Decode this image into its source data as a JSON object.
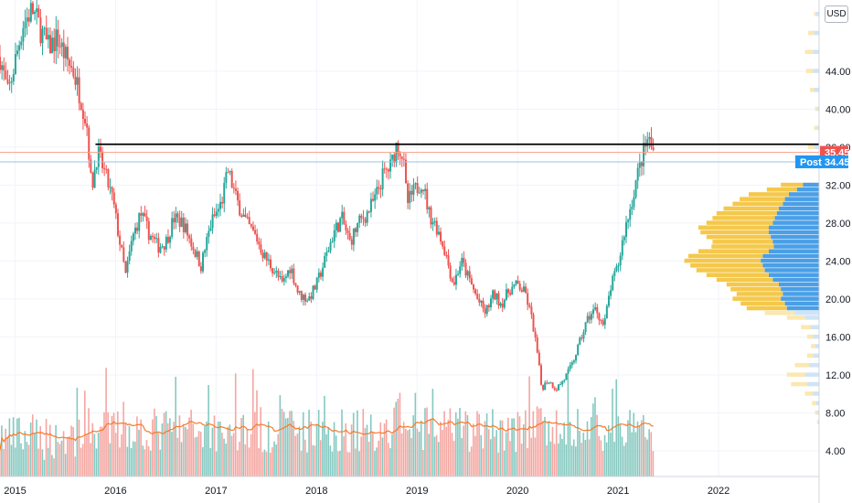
{
  "currency_label": "USD",
  "chart_data": {
    "type": "candlestick",
    "x_axis": {
      "range": [
        2014.85,
        2023.0
      ],
      "tick_labels": [
        "2015",
        "2016",
        "2017",
        "2018",
        "2019",
        "2020",
        "2021",
        "2022"
      ]
    },
    "y_axis": {
      "range": [
        1.3,
        51.5
      ],
      "tick_labels": [
        "4.00",
        "8.00",
        "12.00",
        "16.00",
        "20.00",
        "24.00",
        "28.00",
        "32.00",
        "36.00",
        "40.00",
        "44.00"
      ]
    },
    "price_points": [
      [
        2014.85,
        45.5
      ],
      [
        2014.93,
        41.5
      ],
      [
        2015.0,
        45.0
      ],
      [
        2015.08,
        49.0
      ],
      [
        2015.17,
        50.5
      ],
      [
        2015.25,
        48.5
      ],
      [
        2015.33,
        46.5
      ],
      [
        2015.42,
        47.5
      ],
      [
        2015.5,
        45.5
      ],
      [
        2015.58,
        44.0
      ],
      [
        2015.66,
        41.0
      ],
      [
        2015.72,
        38.0
      ],
      [
        2015.76,
        31.5
      ],
      [
        2015.82,
        35.5
      ],
      [
        2015.9,
        33.0
      ],
      [
        2015.97,
        30.5
      ],
      [
        2016.05,
        25.5
      ],
      [
        2016.1,
        22.5
      ],
      [
        2016.17,
        26.5
      ],
      [
        2016.25,
        29.0
      ],
      [
        2016.33,
        27.0
      ],
      [
        2016.42,
        25.5
      ],
      [
        2016.5,
        26.0
      ],
      [
        2016.58,
        28.5
      ],
      [
        2016.67,
        28.0
      ],
      [
        2016.75,
        26.0
      ],
      [
        2016.85,
        23.5
      ],
      [
        2016.95,
        28.0
      ],
      [
        2017.05,
        30.0
      ],
      [
        2017.12,
        33.5
      ],
      [
        2017.2,
        30.5
      ],
      [
        2017.3,
        28.0
      ],
      [
        2017.4,
        26.5
      ],
      [
        2017.48,
        24.5
      ],
      [
        2017.58,
        23.0
      ],
      [
        2017.66,
        21.5
      ],
      [
        2017.74,
        23.5
      ],
      [
        2017.82,
        20.5
      ],
      [
        2017.92,
        20.0
      ],
      [
        2018.0,
        21.5
      ],
      [
        2018.08,
        24.0
      ],
      [
        2018.17,
        27.0
      ],
      [
        2018.25,
        28.5
      ],
      [
        2018.33,
        26.0
      ],
      [
        2018.42,
        28.0
      ],
      [
        2018.5,
        29.0
      ],
      [
        2018.58,
        30.5
      ],
      [
        2018.66,
        33.0
      ],
      [
        2018.74,
        34.0
      ],
      [
        2018.8,
        36.5
      ],
      [
        2018.86,
        35.0
      ],
      [
        2018.9,
        30.0
      ],
      [
        2018.95,
        31.0
      ],
      [
        2019.05,
        32.5
      ],
      [
        2019.12,
        29.0
      ],
      [
        2019.2,
        27.5
      ],
      [
        2019.28,
        25.0
      ],
      [
        2019.36,
        21.5
      ],
      [
        2019.44,
        24.0
      ],
      [
        2019.52,
        22.0
      ],
      [
        2019.6,
        20.0
      ],
      [
        2019.68,
        18.5
      ],
      [
        2019.76,
        20.5
      ],
      [
        2019.84,
        19.5
      ],
      [
        2019.92,
        21.0
      ],
      [
        2020.0,
        21.5
      ],
      [
        2020.08,
        20.5
      ],
      [
        2020.15,
        17.5
      ],
      [
        2020.2,
        14.0
      ],
      [
        2020.24,
        10.5
      ],
      [
        2020.3,
        11.5
      ],
      [
        2020.38,
        10.5
      ],
      [
        2020.46,
        11.5
      ],
      [
        2020.54,
        13.0
      ],
      [
        2020.62,
        15.5
      ],
      [
        2020.7,
        18.0
      ],
      [
        2020.78,
        19.0
      ],
      [
        2020.86,
        17.0
      ],
      [
        2020.92,
        21.0
      ],
      [
        2021.0,
        23.5
      ],
      [
        2021.06,
        27.0
      ],
      [
        2021.12,
        29.5
      ],
      [
        2021.18,
        32.5
      ],
      [
        2021.24,
        35.0
      ],
      [
        2021.3,
        37.0
      ],
      [
        2021.35,
        35.45
      ]
    ],
    "horizontal_lines": [
      {
        "price": 36.3,
        "color": "#000000",
        "x_start": 2015.8
      },
      {
        "price": 35.45,
        "color": "#f7a188"
      },
      {
        "price": 34.45,
        "color": "#9cc3e4"
      }
    ],
    "price_badges": [
      {
        "label": "",
        "value": "35.45",
        "price": 35.45,
        "color": "#ef5350"
      },
      {
        "label": "Post",
        "value": "34.45",
        "price": 34.45,
        "color": "#2196f3"
      }
    ],
    "volume_profile": {
      "colors": {
        "up": "#f5c84b",
        "down": "#4a9fe6",
        "up_light": "#fbe7b0",
        "down_light": "#cfe4f6"
      },
      "bins": [
        [
          50.0,
          2,
          3
        ],
        [
          48.0,
          6,
          5
        ],
        [
          46.0,
          8,
          6
        ],
        [
          44.0,
          7,
          6
        ],
        [
          42.0,
          4,
          5
        ],
        [
          40.0,
          2,
          2
        ],
        [
          38.0,
          3,
          2
        ],
        [
          36.0,
          6,
          5
        ],
        [
          34.0,
          10,
          7
        ],
        [
          32.0,
          22,
          16
        ],
        [
          31.5,
          30,
          22
        ],
        [
          31.0,
          40,
          30
        ],
        [
          30.5,
          45,
          34
        ],
        [
          30.0,
          50,
          36
        ],
        [
          29.5,
          55,
          40
        ],
        [
          29.0,
          60,
          42
        ],
        [
          28.5,
          62,
          44
        ],
        [
          28.0,
          66,
          46
        ],
        [
          27.5,
          70,
          50
        ],
        [
          27.0,
          68,
          50
        ],
        [
          26.5,
          64,
          48
        ],
        [
          26.0,
          60,
          46
        ],
        [
          25.5,
          62,
          45
        ],
        [
          25.0,
          70,
          50
        ],
        [
          24.5,
          74,
          56
        ],
        [
          24.0,
          76,
          58
        ],
        [
          23.5,
          72,
          56
        ],
        [
          23.0,
          68,
          54
        ],
        [
          22.5,
          62,
          50
        ],
        [
          22.0,
          56,
          46
        ],
        [
          21.5,
          52,
          40
        ],
        [
          21.0,
          50,
          38
        ],
        [
          20.5,
          46,
          36
        ],
        [
          20.0,
          48,
          38
        ],
        [
          19.5,
          44,
          34
        ],
        [
          19.0,
          40,
          32
        ],
        [
          18.5,
          30,
          24
        ],
        [
          18.0,
          18,
          14
        ],
        [
          17.0,
          10,
          8
        ],
        [
          16.0,
          6,
          6
        ],
        [
          15.0,
          4,
          4
        ],
        [
          14.0,
          6,
          6
        ],
        [
          13.0,
          14,
          10
        ],
        [
          12.0,
          18,
          14
        ],
        [
          11.0,
          16,
          12
        ],
        [
          10.0,
          8,
          6
        ],
        [
          9.0,
          4,
          3
        ],
        [
          8.0,
          2,
          2
        ],
        [
          7.0,
          1,
          1
        ]
      ]
    },
    "volume": {
      "colors": {
        "up": "#85c9c0",
        "down": "#f4a6a1",
        "ma": "#f47b2a"
      }
    }
  }
}
